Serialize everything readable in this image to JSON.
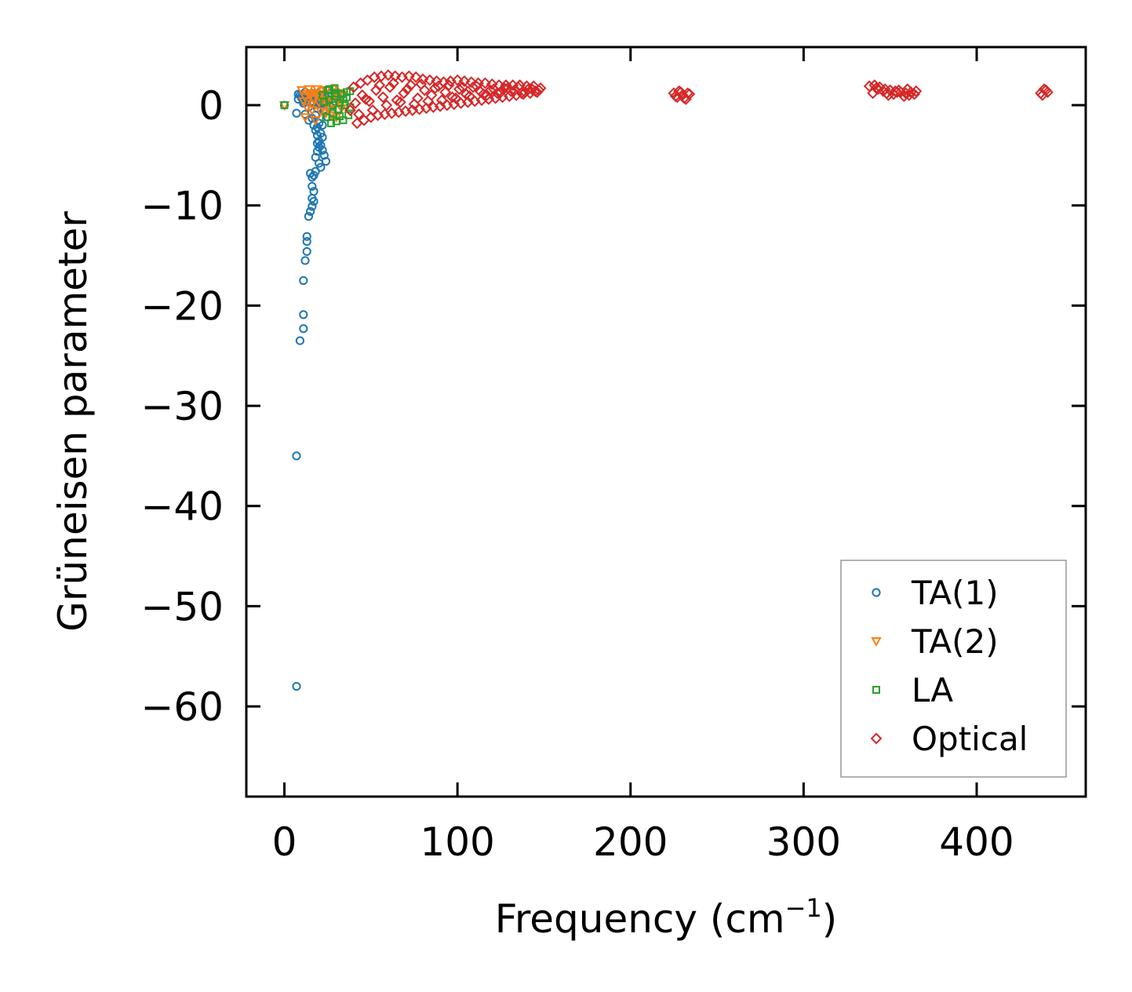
{
  "chart_data": {
    "type": "scatter",
    "title": "",
    "xlabel": "Frequency (cm",
    "xlabel_sup": "−1",
    "xlabel_suffix": ")",
    "ylabel": "Grüneisen parameter",
    "xlim": [
      -22,
      463
    ],
    "ylim": [
      -69,
      5.8
    ],
    "xticks": [
      0,
      100,
      200,
      300,
      400
    ],
    "yticks": [
      0,
      -10,
      -20,
      -30,
      -40,
      -50,
      -60
    ],
    "xtick_labels": [
      "0",
      "100",
      "200",
      "300",
      "400"
    ],
    "ytick_labels": [
      "0",
      "−10",
      "−20",
      "−30",
      "−40",
      "−50",
      "−60"
    ],
    "grid": false,
    "legend_position": "lower-right",
    "series": [
      {
        "name": "TA(1)",
        "marker": "circle",
        "color": "#1f77b4",
        "x": [
          0,
          7,
          8,
          9,
          10,
          11,
          12,
          14,
          15,
          16,
          17,
          18,
          19,
          20,
          21,
          22,
          23,
          24,
          25,
          26,
          8,
          10,
          11,
          12,
          13,
          14,
          15,
          16,
          17,
          18,
          19,
          20,
          21,
          22,
          23,
          24,
          14,
          15,
          16,
          17,
          18,
          18,
          19,
          19,
          20,
          20,
          21,
          22,
          16,
          16,
          17,
          17,
          16,
          15,
          14,
          13,
          13,
          13,
          12,
          11,
          11,
          11,
          9,
          7,
          7,
          18,
          19,
          20,
          21,
          22,
          20,
          19,
          21,
          23,
          25,
          27,
          29,
          30
        ],
        "y": [
          0,
          -0.8,
          0.6,
          1.0,
          0.9,
          0.4,
          -0.9,
          0.8,
          0.3,
          1.2,
          0.2,
          0.6,
          -0.3,
          0.5,
          1.0,
          0.2,
          -0.6,
          0.4,
          -1.2,
          0.8,
          1.1,
          0.7,
          0.2,
          1.3,
          0.5,
          -0.2,
          0.9,
          -1.3,
          -2.0,
          -2.5,
          -3.0,
          -3.6,
          -4.0,
          -4.5,
          -5.0,
          -5.6,
          -1.5,
          -6.8,
          -7.2,
          -7.0,
          -6.6,
          -5.2,
          -4.6,
          -3.8,
          -4.2,
          -5.8,
          -6.2,
          -3.2,
          -8.1,
          -9.3,
          -9.6,
          -8.6,
          -10.1,
          -10.6,
          -11.1,
          -13.1,
          -13.6,
          -14.6,
          -15.5,
          -17.5,
          -20.9,
          -22.3,
          -23.5,
          -35.0,
          -58.0,
          -1.0,
          -2.2,
          -1.8,
          -2.8,
          -2.0,
          0.2,
          0.9,
          1.4,
          -0.4,
          0.6,
          1.2,
          0.4,
          0.8
        ]
      },
      {
        "name": "TA(2)",
        "marker": "triangle-down",
        "color": "#ff7f0e",
        "x": [
          0,
          10,
          12,
          14,
          16,
          18,
          20,
          22,
          24,
          26,
          28,
          30,
          32,
          34,
          11,
          13,
          15,
          17,
          19,
          21,
          23,
          25,
          27,
          29,
          31,
          33,
          12,
          16,
          20,
          24,
          28,
          32,
          14,
          18,
          22,
          26,
          30
        ],
        "y": [
          0,
          1.5,
          0.8,
          1.6,
          -0.5,
          1.2,
          0.3,
          1.4,
          -0.8,
          0.9,
          1.6,
          -1.2,
          0.6,
          1.0,
          0.4,
          -0.2,
          1.0,
          0.6,
          1.6,
          -0.6,
          1.1,
          0.2,
          -1.0,
          1.3,
          0.5,
          -0.3,
          -1.2,
          0.1,
          0.9,
          1.5,
          0.0,
          1.2,
          1.1,
          -1.5,
          0.5,
          -0.4,
          0.8
        ]
      },
      {
        "name": "LA",
        "marker": "square",
        "color": "#2ca02c",
        "x": [
          0,
          22,
          24,
          26,
          28,
          30,
          32,
          34,
          36,
          38,
          23,
          25,
          27,
          29,
          31,
          33,
          35,
          37,
          26,
          30,
          34,
          38,
          28,
          32,
          36,
          29
        ],
        "y": [
          0,
          1.0,
          -1.2,
          0.5,
          -0.8,
          1.2,
          0.2,
          -1.5,
          0.8,
          1.4,
          0.3,
          1.5,
          -1.8,
          0.9,
          -0.4,
          1.1,
          0.0,
          -1.0,
          1.6,
          -1.6,
          0.6,
          -0.2,
          0.0,
          -1.1,
          1.3,
          1.7
        ]
      },
      {
        "name": "Optical",
        "marker": "diamond",
        "color": "#d62728",
        "x": [
          40,
          44,
          48,
          52,
          56,
          60,
          64,
          68,
          72,
          76,
          80,
          84,
          88,
          92,
          96,
          100,
          104,
          108,
          112,
          116,
          120,
          124,
          128,
          132,
          136,
          140,
          144,
          148,
          42,
          46,
          50,
          54,
          58,
          62,
          66,
          70,
          74,
          78,
          82,
          86,
          90,
          94,
          98,
          102,
          106,
          110,
          114,
          118,
          122,
          126,
          130,
          134,
          138,
          142,
          146,
          41,
          45,
          49,
          53,
          57,
          61,
          65,
          69,
          73,
          77,
          81,
          85,
          89,
          93,
          97,
          101,
          105,
          109,
          113,
          117,
          121,
          125,
          129,
          133,
          137,
          141,
          145,
          38,
          43,
          47,
          51,
          55,
          59,
          63,
          67,
          71,
          75,
          79,
          83,
          87,
          91,
          95,
          99,
          103,
          107,
          111,
          115,
          119,
          123,
          127,
          131,
          135,
          139,
          143,
          147,
          225,
          227,
          229,
          231,
          233,
          226,
          228,
          230,
          232,
          234,
          338,
          341,
          344,
          347,
          350,
          353,
          356,
          359,
          362,
          365,
          340,
          343,
          346,
          349,
          352,
          355,
          358,
          361,
          364,
          342,
          348,
          354,
          360,
          437,
          439,
          441,
          438,
          440
        ],
        "y": [
          1.8,
          2.2,
          2.5,
          2.8,
          2.9,
          3.0,
          2.9,
          2.8,
          2.9,
          2.8,
          2.6,
          2.5,
          2.4,
          2.3,
          2.4,
          2.5,
          2.4,
          2.3,
          2.2,
          2.2,
          2.1,
          2.0,
          2.0,
          2.0,
          2.0,
          1.9,
          1.9,
          1.7,
          -1.8,
          -1.5,
          -1.2,
          -1.0,
          -0.9,
          -0.8,
          -0.7,
          -0.6,
          -0.5,
          -0.4,
          -0.3,
          -0.2,
          -0.1,
          0.0,
          0.1,
          0.2,
          0.3,
          0.4,
          0.5,
          0.6,
          0.7,
          0.8,
          0.9,
          1.0,
          1.1,
          1.2,
          1.3,
          0.2,
          1.0,
          0.4,
          1.5,
          0.8,
          1.8,
          0.5,
          1.2,
          2.0,
          0.7,
          1.5,
          1.0,
          1.9,
          1.3,
          0.8,
          1.6,
          1.1,
          1.8,
          1.4,
          1.0,
          1.6,
          1.3,
          1.7,
          1.5,
          1.2,
          1.6,
          1.4,
          -0.5,
          -0.9,
          0.6,
          -0.5,
          2.0,
          0.0,
          2.2,
          0.3,
          1.6,
          0.1,
          2.1,
          0.4,
          1.7,
          0.5,
          2.0,
          0.7,
          1.8,
          0.9,
          1.9,
          1.1,
          1.5,
          1.2,
          1.7,
          1.4,
          1.8,
          1.3,
          1.6,
          1.5,
          1.2,
          0.8,
          1.3,
          0.7,
          1.2,
          0.9,
          1.4,
          1.0,
          0.6,
          1.1,
          1.9,
          2.0,
          1.8,
          1.6,
          1.5,
          1.4,
          1.3,
          1.2,
          1.3,
          1.4,
          1.2,
          1.6,
          1.4,
          1.0,
          1.1,
          1.5,
          0.9,
          1.0,
          1.1,
          1.7,
          1.2,
          1.3,
          1.6,
          1.2,
          1.6,
          1.3,
          1.0,
          1.5
        ]
      }
    ]
  }
}
